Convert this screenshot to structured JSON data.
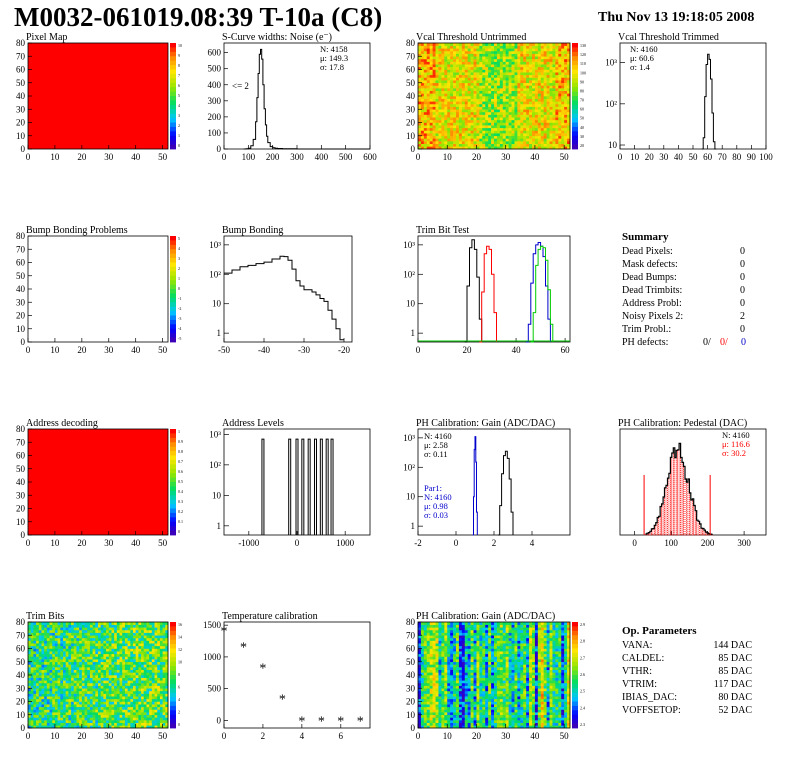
{
  "title": "M0032-061019.08:39 T-10a (C8)",
  "date": "Thu Nov 13 19:18:05 2008",
  "colors": {
    "red": "#ff0000",
    "blue": "#0000cc",
    "green": "#00cc00",
    "black": "#000000",
    "fill_red": "#ff0000"
  },
  "chart_data": [
    {
      "id": "pixel-map",
      "type": "heatmap",
      "title": "Pixel Map",
      "xticks": [
        "0",
        "10",
        "20",
        "30",
        "40",
        "50"
      ],
      "yticks": [
        "0",
        "10",
        "20",
        "30",
        "40",
        "50",
        "60",
        "70",
        "80"
      ],
      "xlim": [
        0,
        52
      ],
      "ylim": [
        0,
        80
      ],
      "fill": "uniform-red",
      "z_ticks": [
        "10",
        "9",
        "8",
        "7",
        "6",
        "5",
        "4",
        "3",
        "2",
        "1",
        "0"
      ]
    },
    {
      "id": "scurve-noise",
      "type": "line",
      "title": "S-Curve widths: Noise (e⁻)",
      "xticks": [
        "0",
        "100",
        "200",
        "300",
        "400",
        "500",
        "600"
      ],
      "yticks": [
        "0",
        "100",
        "200",
        "300",
        "400",
        "500",
        "600"
      ],
      "xlim": [
        0,
        600
      ],
      "ylim": [
        0,
        660
      ],
      "stats": [
        "N: 4158",
        "μ: 149.3",
        "σ: 17.8"
      ],
      "annotation": "<= 2",
      "x": [
        80,
        90,
        100,
        110,
        120,
        130,
        135,
        140,
        145,
        150,
        155,
        160,
        165,
        170,
        175,
        180,
        190,
        200,
        210,
        220,
        240,
        260,
        280,
        300,
        600
      ],
      "y": [
        0,
        1,
        5,
        20,
        60,
        170,
        320,
        470,
        590,
        620,
        560,
        400,
        250,
        150,
        80,
        40,
        15,
        8,
        5,
        3,
        2,
        1,
        1,
        0,
        0
      ]
    },
    {
      "id": "vcal-untrimmed",
      "type": "heatmap",
      "title": "Vcal Threshold Untrimmed",
      "xticks": [
        "0",
        "10",
        "20",
        "30",
        "40",
        "50"
      ],
      "yticks": [
        "0",
        "10",
        "20",
        "30",
        "40",
        "50",
        "60",
        "70",
        "80"
      ],
      "xlim": [
        0,
        52
      ],
      "ylim": [
        0,
        80
      ],
      "z_ticks": [
        "130",
        "120",
        "110",
        "100",
        "90",
        "80",
        "70",
        "60",
        "50",
        "40",
        "30",
        "20"
      ]
    },
    {
      "id": "vcal-trimmed",
      "type": "line",
      "title": "Vcal Threshold Trimmed",
      "log": true,
      "xticks": [
        "0",
        "10",
        "20",
        "30",
        "40",
        "50",
        "60",
        "70",
        "80",
        "90",
        "100"
      ],
      "yticks": [
        "10",
        "10²",
        "10³"
      ],
      "xlim": [
        0,
        100
      ],
      "ylim": [
        8,
        3000
      ],
      "stats": [
        "N: 4160",
        "μ: 60.6",
        "σ: 1.4"
      ],
      "x": [
        56,
        57,
        58,
        59,
        60,
        61,
        62,
        63,
        64,
        65,
        66
      ],
      "y": [
        8,
        15,
        150,
        900,
        1600,
        1200,
        400,
        60,
        12,
        8,
        8
      ]
    },
    {
      "id": "bump-bonding-problems",
      "type": "heatmap",
      "title": "Bump Bonding Problems",
      "xticks": [
        "0",
        "10",
        "20",
        "30",
        "40",
        "50"
      ],
      "yticks": [
        "0",
        "10",
        "20",
        "30",
        "40",
        "50",
        "60",
        "70",
        "80"
      ],
      "xlim": [
        0,
        52
      ],
      "ylim": [
        0,
        80
      ],
      "fill": "empty",
      "z_ticks": [
        "5",
        "4",
        "3",
        "2",
        "1",
        "0",
        "-1",
        "-2",
        "-3",
        "-4",
        "-5"
      ]
    },
    {
      "id": "bump-bonding",
      "type": "line",
      "title": "Bump Bonding",
      "log": true,
      "xticks": [
        "-50",
        "-40",
        "-30",
        "-20"
      ],
      "yticks": [
        "1",
        "10",
        "10²",
        "10³"
      ],
      "xlim": [
        -50,
        -18
      ],
      "ylim": [
        0.5,
        2000
      ],
      "x": [
        -50,
        -48,
        -46,
        -44,
        -42,
        -40,
        -38,
        -36,
        -35,
        -34,
        -33,
        -32,
        -31,
        -30,
        -29,
        -28,
        -27,
        -26,
        -25,
        -24,
        -23,
        -22,
        -21,
        -20
      ],
      "y": [
        110,
        140,
        180,
        200,
        230,
        260,
        330,
        410,
        400,
        300,
        150,
        60,
        40,
        30,
        30,
        25,
        20,
        15,
        12,
        6,
        3,
        1.4,
        0.6,
        0.6
      ]
    },
    {
      "id": "trim-bit-test",
      "type": "line",
      "title": "Trim Bit Test",
      "log": true,
      "xticks": [
        "0",
        "20",
        "40",
        "60"
      ],
      "yticks": [
        "1",
        "10",
        "10²",
        "10³"
      ],
      "xlim": [
        0,
        62
      ],
      "ylim": [
        0.5,
        2000
      ],
      "series": [
        {
          "color": "black",
          "x": [
            19,
            20,
            21,
            22,
            23,
            24,
            25,
            26
          ],
          "y": [
            0.5,
            40,
            800,
            1500,
            700,
            80,
            3,
            0.5
          ]
        },
        {
          "color": "red",
          "x": [
            25,
            26,
            27,
            28,
            29,
            30,
            31,
            32
          ],
          "y": [
            0.5,
            25,
            500,
            900,
            700,
            100,
            5,
            0.5
          ]
        },
        {
          "color": "blue",
          "x": [
            44,
            45,
            46,
            47,
            48,
            49,
            50,
            51,
            52,
            53,
            54
          ],
          "y": [
            0.5,
            2,
            50,
            500,
            1000,
            1200,
            900,
            400,
            40,
            3,
            0.5
          ]
        },
        {
          "color": "green",
          "x": [
            46,
            47,
            48,
            49,
            50,
            51,
            52,
            53,
            54,
            55
          ],
          "y": [
            0.5,
            5,
            200,
            700,
            900,
            800,
            300,
            30,
            2,
            0.5
          ]
        }
      ]
    },
    {
      "id": "address-decoding",
      "type": "heatmap",
      "title": "Address decoding",
      "xticks": [
        "0",
        "10",
        "20",
        "30",
        "40",
        "50"
      ],
      "yticks": [
        "0",
        "10",
        "20",
        "30",
        "40",
        "50",
        "60",
        "70",
        "80"
      ],
      "xlim": [
        0,
        52
      ],
      "ylim": [
        0,
        80
      ],
      "fill": "uniform-red",
      "z_ticks": [
        "1",
        "0.9",
        "0.8",
        "0.7",
        "0.6",
        "0.5",
        "0.4",
        "0.3",
        "0.2",
        "0.1",
        "0"
      ]
    },
    {
      "id": "address-levels",
      "type": "line",
      "title": "Address Levels",
      "log": true,
      "xticks": [
        "-1000",
        "0",
        "1000"
      ],
      "yticks": [
        "1",
        "10",
        "10²",
        "10³"
      ],
      "xlim": [
        -1500,
        1500
      ],
      "ylim": [
        0.5,
        1500
      ],
      "peaks": [
        -700,
        -150,
        0,
        120,
        250,
        380,
        500,
        620,
        720
      ],
      "peak_heights": [
        700,
        700,
        700,
        700,
        700,
        700,
        700,
        700,
        700
      ]
    },
    {
      "id": "ph-gain",
      "type": "line",
      "title": "PH Calibration: Gain (ADC/DAC)",
      "log": true,
      "xticks": [
        "-2",
        "0",
        "2",
        "4"
      ],
      "yticks": [
        "1",
        "10",
        "10²",
        "10³"
      ],
      "xlim": [
        -2,
        6
      ],
      "ylim": [
        0.5,
        2000
      ],
      "stats": [
        "N: 4160",
        "μ: 2.58",
        "σ: 0.11"
      ],
      "stats2": [
        "Par1:",
        "N: 4160",
        "μ: 0.98",
        "σ: 0.03"
      ],
      "series": [
        {
          "color": "blue",
          "x": [
            0.88,
            0.92,
            0.96,
            1.0,
            1.04,
            1.08,
            1.12
          ],
          "y": [
            0.5,
            10,
            400,
            1100,
            150,
            3,
            0.5
          ]
        },
        {
          "color": "black",
          "x": [
            2.2,
            2.3,
            2.4,
            2.5,
            2.6,
            2.7,
            2.8,
            2.9,
            3.0
          ],
          "y": [
            0.5,
            5,
            60,
            250,
            350,
            200,
            40,
            3,
            0.5
          ]
        }
      ]
    },
    {
      "id": "ph-pedestal",
      "type": "bar",
      "title": "PH Calibration: Pedestal (DAC)",
      "xticks": [
        "0",
        "100",
        "200",
        "300"
      ],
      "xlim": [
        -40,
        360
      ],
      "ylim": [
        0,
        80
      ],
      "stats": [
        "N: 4160",
        "μ: 116.6",
        "σ: 30.2"
      ]
    },
    {
      "id": "trim-bits",
      "type": "heatmap",
      "title": "Trim Bits",
      "xticks": [
        "0",
        "10",
        "20",
        "30",
        "40",
        "50"
      ],
      "yticks": [
        "0",
        "10",
        "20",
        "30",
        "40",
        "50",
        "60",
        "70",
        "80"
      ],
      "xlim": [
        0,
        52
      ],
      "ylim": [
        0,
        80
      ],
      "z_ticks": [
        "16",
        "14",
        "12",
        "10",
        "8",
        "6",
        "4",
        "2",
        "0"
      ]
    },
    {
      "id": "temperature-calibration",
      "type": "scatter",
      "title": "Temperature calibration",
      "xticks": [
        "0",
        "2",
        "4",
        "6"
      ],
      "yticks": [
        "0",
        "500",
        "1000",
        "1500"
      ],
      "xlim": [
        0,
        7.5
      ],
      "ylim": [
        -120,
        1550
      ],
      "x": [
        0,
        1,
        2,
        3,
        4,
        5,
        6,
        7
      ],
      "y": [
        1400,
        1150,
        820,
        330,
        -20,
        -20,
        -20,
        -20
      ]
    },
    {
      "id": "ph-gain-map",
      "type": "heatmap",
      "title": "PH Calibration: Gain (ADC/DAC)",
      "xticks": [
        "0",
        "10",
        "20",
        "30",
        "40",
        "50"
      ],
      "yticks": [
        "0",
        "10",
        "20",
        "30",
        "40",
        "50",
        "60",
        "70",
        "80"
      ],
      "xlim": [
        0,
        52
      ],
      "ylim": [
        0,
        80
      ],
      "z_ticks": [
        "2.9",
        "2.8",
        "2.7",
        "2.6",
        "2.5",
        "2.4",
        "2.3"
      ]
    }
  ],
  "summary": {
    "heading": "Summary",
    "rows": [
      {
        "label": "Dead Pixels:",
        "value": "0"
      },
      {
        "label": "Mask defects:",
        "value": "0"
      },
      {
        "label": "Dead Bumps:",
        "value": "0"
      },
      {
        "label": "Dead Trimbits:",
        "value": "0"
      },
      {
        "label": "Address Probl:",
        "value": "0"
      },
      {
        "label": "Noisy Pixels 2:",
        "value": "2"
      },
      {
        "label": "Trim Probl.:",
        "value": "0"
      }
    ],
    "ph_label": "PH defects:",
    "ph_values": [
      {
        "text": "0/",
        "color": "black"
      },
      {
        "text": "0/",
        "color": "red"
      },
      {
        "text": "0",
        "color": "blue"
      }
    ]
  },
  "op_params": {
    "heading": "Op. Parameters",
    "rows": [
      {
        "label": "VANA:",
        "value": "144 DAC"
      },
      {
        "label": "CALDEL:",
        "value": "85 DAC"
      },
      {
        "label": "VTHR:",
        "value": "85 DAC"
      },
      {
        "label": "VTRIM:",
        "value": "117 DAC"
      },
      {
        "label": "IBIAS_DAC:",
        "value": "80 DAC"
      },
      {
        "label": "VOFFSETOP:",
        "value": "52 DAC"
      }
    ]
  }
}
